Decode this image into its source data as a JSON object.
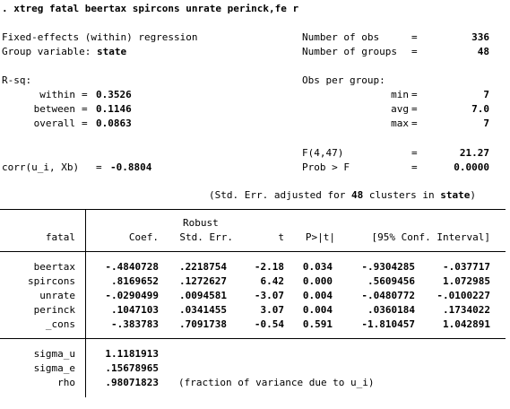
{
  "command": ". xtreg fatal beertax spircons unrate perinck,fe r",
  "header": {
    "title": "Fixed-effects (within) regression",
    "group_label": "Group variable: ",
    "group_var": "state",
    "n_obs_label": "Number of obs",
    "n_obs": "336",
    "n_groups_label": "Number of groups",
    "n_groups": "48",
    "rsq_label": "R-sq:",
    "within_label": "within",
    "within": "0.3526",
    "between_label": "between",
    "between": "0.1146",
    "overall_label": "overall",
    "overall": "0.0863",
    "obs_per_group_label": "Obs per group:",
    "min_label": "min",
    "min": "7",
    "avg_label": "avg",
    "avg": "7.0",
    "max_label": "max",
    "max": "7",
    "f_label": "F(4,47)",
    "f_value": "21.27",
    "prob_label": "Prob > F",
    "prob_value": "0.0000",
    "corr_label": "corr(u_i, Xb)",
    "corr_value": "-0.8804",
    "eq": "=",
    "se_note_prefix": "(Std. Err. adjusted for ",
    "se_note_clusters": "48",
    "se_note_mid": " clusters in ",
    "se_note_var": "state",
    "se_note_suffix": ")"
  },
  "table": {
    "robust_label": "Robust",
    "columns": [
      "fatal",
      "Coef.",
      "Std. Err.",
      "t",
      "P>|t|",
      "[95% Conf. Interval]"
    ],
    "rows": [
      {
        "name": "beertax",
        "coef": "-.4840728",
        "se": ".2218754",
        "t": "-2.18",
        "p": "0.034",
        "lo": "-.9304285",
        "hi": "-.037717"
      },
      {
        "name": "spircons",
        "coef": ".8169652",
        "se": ".1272627",
        "t": "6.42",
        "p": "0.000",
        "lo": ".5609456",
        "hi": "1.072985"
      },
      {
        "name": "unrate",
        "coef": "-.0290499",
        "se": ".0094581",
        "t": "-3.07",
        "p": "0.004",
        "lo": "-.0480772",
        "hi": "-.0100227"
      },
      {
        "name": "perinck",
        "coef": ".1047103",
        "se": ".0341455",
        "t": "3.07",
        "p": "0.004",
        "lo": ".0360184",
        "hi": ".1734022"
      },
      {
        "name": "_cons",
        "coef": "-.383783",
        "se": ".7091738",
        "t": "-0.54",
        "p": "0.591",
        "lo": "-1.810457",
        "hi": "1.042891"
      }
    ],
    "sigma_u_label": "sigma_u",
    "sigma_u": "1.1181913",
    "sigma_e_label": "sigma_e",
    "sigma_e": ".15678965",
    "rho_label": "rho",
    "rho": ".98071823",
    "rho_note": "(fraction of variance due to u_i)"
  }
}
